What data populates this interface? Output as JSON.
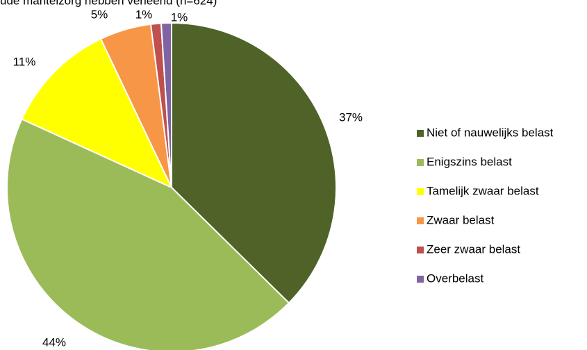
{
  "chart_data": {
    "type": "pie",
    "title": "ude mantelzorg hebben verleend (n=624)",
    "categories": [
      "Niet of nauwelijks belast",
      "Enigszins belast",
      "Tamelijk zwaar belast",
      "Zwaar belast",
      "Zeer zwaar belast",
      "Overbelast"
    ],
    "values": [
      37,
      44,
      11,
      5,
      1,
      1
    ],
    "value_labels": [
      "37%",
      "44%",
      "11%",
      "5%",
      "1%",
      "1%"
    ],
    "colors": [
      "#4f6228",
      "#9bbb59",
      "#ffff00",
      "#f79646",
      "#c0504d",
      "#8064a2"
    ],
    "legend": "right"
  }
}
